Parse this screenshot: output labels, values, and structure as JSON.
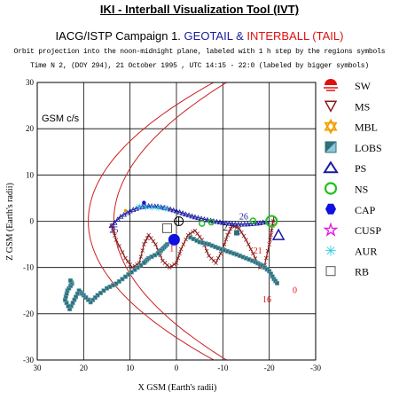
{
  "app_title": "IKI - Interball Visualization Tool (IVT)",
  "campaign": {
    "prefix": "IACG/ISTP Campaign 1.",
    "geotail": "GEOTAIL",
    "amp": "&",
    "interball": "INTERBALL (TAIL)"
  },
  "subtitle": "Orbit projection into the noon-midnight plane, labeled with 1 h step by the regions symbols",
  "time_line": "Time N 2, (DOY 294), 21 October  1995 ,  UTC 14:15 - 22:0 (labeled by bigger symbols)",
  "colors": {
    "geotail": "#8b1a1a",
    "interball": "#2f6f7a",
    "geotail_title": "#1a1aa0",
    "interball_title": "#e01010",
    "boundary": "#cc2020",
    "grid": "#000000"
  },
  "chart_data": {
    "type": "line",
    "frame_label": "GSM c/s",
    "xlabel": "X GSM (Earth's radii)",
    "ylabel": "Z GSM (Earth's radii)",
    "xlim": [
      30,
      -30
    ],
    "ylim": [
      30,
      -30
    ],
    "x_ticks": [
      "30",
      "20",
      "10",
      "0",
      "-10",
      "-20",
      "-30"
    ],
    "y_ticks": [
      "-30",
      "-20",
      "-10",
      "0",
      "10",
      "20",
      "30"
    ],
    "x_tick_values": [
      30,
      20,
      10,
      0,
      -10,
      -20,
      -30
    ],
    "y_tick_values": [
      -30,
      -20,
      -10,
      0,
      10,
      20,
      30
    ],
    "grid": true,
    "series": [
      {
        "key": "geotail",
        "color": "#8b1a1a",
        "points": [
          [
            14,
            -1
          ],
          [
            13,
            -4
          ],
          [
            11,
            -8
          ],
          [
            9.5,
            -10
          ],
          [
            8,
            -9
          ],
          [
            7,
            -5
          ],
          [
            6,
            -3
          ],
          [
            4.5,
            -5
          ],
          [
            3,
            -8.5
          ],
          [
            1.5,
            -10
          ],
          [
            0,
            -9
          ],
          [
            -1,
            -6
          ],
          [
            -2.5,
            -3
          ],
          [
            -4,
            -2
          ],
          [
            -5.5,
            -4
          ],
          [
            -7,
            -7.5
          ],
          [
            -8.5,
            -9
          ],
          [
            -10,
            -6
          ],
          [
            -11,
            -3
          ],
          [
            -12,
            -1
          ],
          [
            -13.5,
            -1.5
          ],
          [
            -15,
            -4
          ],
          [
            -16.5,
            -7
          ],
          [
            -18,
            -10
          ],
          [
            -19,
            -9.5
          ],
          [
            -20,
            -5
          ],
          [
            -20.5,
            -2
          ],
          [
            -21,
            1
          ]
        ]
      },
      {
        "key": "interball",
        "color": "#2f6f7a",
        "points": [
          [
            2,
            -5
          ],
          [
            3,
            -6
          ],
          [
            4,
            -7
          ],
          [
            6,
            -8
          ],
          [
            7,
            -9
          ],
          [
            9,
            -10.5
          ],
          [
            11,
            -12
          ],
          [
            13,
            -13.5
          ],
          [
            15,
            -14.5
          ],
          [
            17,
            -16
          ],
          [
            18.5,
            -17.5
          ],
          [
            20,
            -16
          ],
          [
            21,
            -15
          ],
          [
            22,
            -17
          ],
          [
            23,
            -19
          ],
          [
            24,
            -17
          ],
          [
            23.5,
            -15
          ],
          [
            22.5,
            -13.5
          ],
          [
            23,
            -12.5
          ]
        ]
      },
      {
        "key": "interball_lower",
        "color": "#2f6f7a",
        "points": [
          [
            -3,
            -3.5
          ],
          [
            -5,
            -4.5
          ],
          [
            -7,
            -5
          ],
          [
            -9,
            -5.8
          ],
          [
            -11,
            -6.5
          ],
          [
            -13,
            -7.2
          ],
          [
            -15,
            -8
          ],
          [
            -17,
            -8.8
          ],
          [
            -18.5,
            -9.6
          ],
          [
            -20,
            -10.8
          ],
          [
            -21,
            -12.5
          ],
          [
            -22,
            -13.8
          ]
        ]
      },
      {
        "key": "bottom",
        "color": "#1a1aa0",
        "points": [
          [
            14,
            -1
          ],
          [
            12,
            1
          ],
          [
            10,
            2.2
          ],
          [
            8,
            3
          ],
          [
            6,
            3.3
          ],
          [
            4,
            3.2
          ],
          [
            2,
            2.8
          ],
          [
            0,
            2.2
          ],
          [
            -2,
            1.5
          ],
          [
            -4,
            0.9
          ],
          [
            -6,
            0.4
          ],
          [
            -8,
            0
          ],
          [
            -10,
            -0.3
          ],
          [
            -12,
            -0.6
          ],
          [
            -14,
            -0.7
          ],
          [
            -16,
            -0.6
          ],
          [
            -18,
            -0.4
          ],
          [
            -20,
            0
          ]
        ]
      }
    ],
    "hour_labels": [
      {
        "text": "25",
        "x": 13.5,
        "z": -2.5,
        "color": "#1a1aa0"
      },
      {
        "text": "1",
        "x": 1,
        "z": -6.5,
        "color": "#e01010"
      },
      {
        "text": "16",
        "x": -19.5,
        "z": -17.5,
        "color": "#e01010"
      },
      {
        "text": "0",
        "x": -25.5,
        "z": -15.5,
        "color": "#e01010"
      },
      {
        "text": "21",
        "x": -17.5,
        "z": -7,
        "color": "#e01010"
      },
      {
        "text": "2",
        "x": -10.5,
        "z": -2,
        "color": "#000000"
      },
      {
        "text": "26",
        "x": -14.5,
        "z": 0.4,
        "color": "#1a1aa0"
      }
    ],
    "legend": [
      {
        "label": "SW",
        "icon": "sun-icon"
      },
      {
        "label": "MS",
        "icon": "triangle-down-icon"
      },
      {
        "label": "MBL",
        "icon": "star-hex-icon"
      },
      {
        "label": "LOBS",
        "icon": "square-half-icon"
      },
      {
        "label": "PS",
        "icon": "triangle-up-icon"
      },
      {
        "label": "NS",
        "icon": "circle-icon"
      },
      {
        "label": "CAP",
        "icon": "hexagon-icon"
      },
      {
        "label": "CUSP",
        "icon": "star-icon"
      },
      {
        "label": "AUR",
        "icon": "asterisk-icon"
      },
      {
        "label": "RB",
        "icon": "square-icon"
      }
    ]
  }
}
